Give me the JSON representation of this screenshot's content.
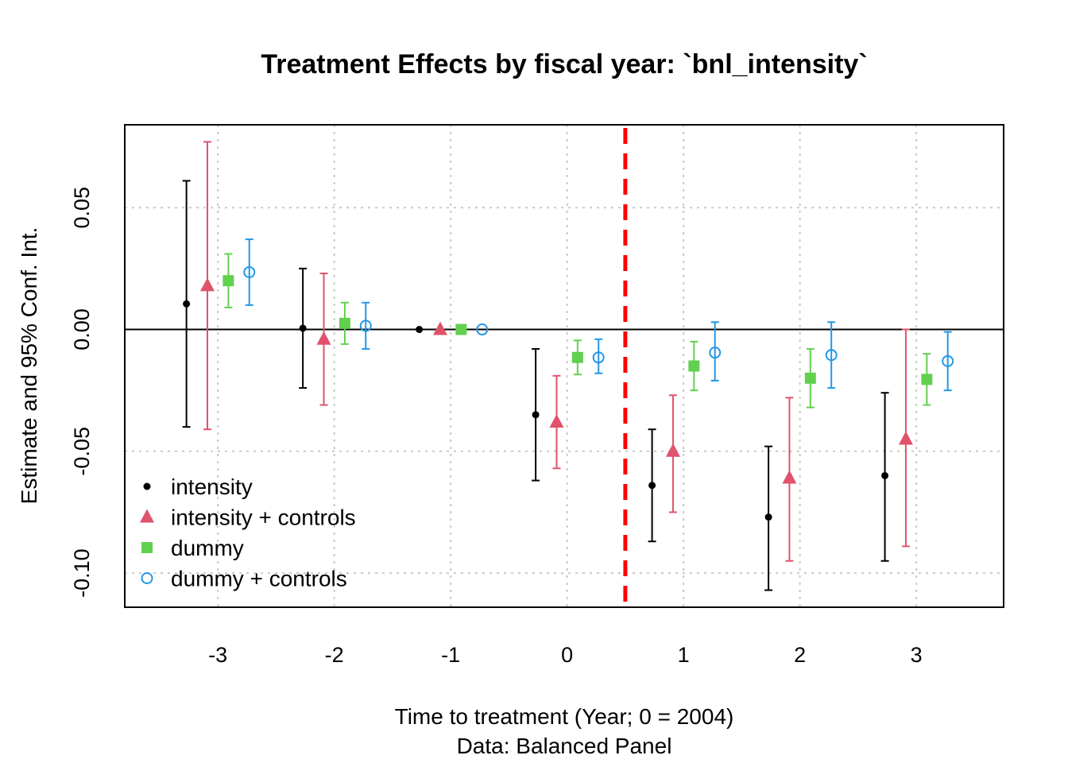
{
  "chart_data": {
    "type": "scatter",
    "title": "Treatment Effects by fiscal year: `bnl_intensity`",
    "xlabel": "Time to treatment (Year; 0 = 2004)",
    "xlabel2": "Data: Balanced Panel",
    "ylabel": "Estimate and 95% Conf. Int.",
    "xlim": [
      -3.8,
      3.75
    ],
    "ylim": [
      -0.114,
      0.084
    ],
    "x_ticks": [
      -3,
      -2,
      -1,
      0,
      1,
      2,
      3
    ],
    "x_tick_labels": [
      "-3",
      "-2",
      "-1",
      "0",
      "1",
      "2",
      "3"
    ],
    "y_ticks": [
      0.05,
      0.0,
      -0.05,
      -0.1
    ],
    "y_tick_labels": [
      "0.05",
      "0.00",
      "-0.05",
      "-0.10"
    ],
    "grid": true,
    "zero_line": 0,
    "treatment_line_x": 0.5,
    "treatment_line_color": "#FF0000",
    "legend_position": "bottom-left",
    "series": [
      {
        "name": "intensity",
        "color": "#000000",
        "marker": "dot",
        "x": [
          -3.27,
          -2.27,
          -1.27,
          -0.27,
          0.73,
          1.73,
          2.73
        ],
        "y": [
          0.0105,
          0.0005,
          0.0,
          -0.035,
          -0.064,
          -0.077,
          -0.06
        ],
        "ci_low": [
          -0.04,
          -0.024,
          0.0,
          -0.062,
          -0.087,
          -0.107,
          -0.095
        ],
        "ci_high": [
          0.061,
          0.025,
          0.0,
          -0.008,
          -0.041,
          -0.048,
          -0.026
        ]
      },
      {
        "name": "intensity + controls",
        "color": "#DF536B",
        "marker": "triangle",
        "x": [
          -3.09,
          -2.09,
          -1.09,
          -0.09,
          0.91,
          1.91,
          2.91
        ],
        "y": [
          0.018,
          -0.004,
          0.0,
          -0.038,
          -0.05,
          -0.061,
          -0.045
        ],
        "ci_low": [
          -0.041,
          -0.031,
          0.0,
          -0.057,
          -0.075,
          -0.095,
          -0.089
        ],
        "ci_high": [
          0.077,
          0.023,
          0.0,
          -0.019,
          -0.027,
          -0.028,
          0.0
        ]
      },
      {
        "name": "dummy",
        "color": "#61D04F",
        "marker": "square",
        "x": [
          -2.91,
          -1.91,
          -0.91,
          0.09,
          1.09,
          2.09,
          3.09
        ],
        "y": [
          0.02,
          0.0025,
          0.0,
          -0.0115,
          -0.015,
          -0.02,
          -0.0205
        ],
        "ci_low": [
          0.009,
          -0.006,
          0.0,
          -0.0185,
          -0.025,
          -0.032,
          -0.031
        ],
        "ci_high": [
          0.031,
          0.011,
          0.0,
          -0.0045,
          -0.005,
          -0.008,
          -0.01
        ]
      },
      {
        "name": "dummy + controls",
        "color": "#2297E6",
        "marker": "circle",
        "x": [
          -2.73,
          -1.73,
          -0.73,
          0.27,
          1.27,
          2.27,
          3.27
        ],
        "y": [
          0.0235,
          0.0015,
          0.0,
          -0.0115,
          -0.0095,
          -0.0105,
          -0.013
        ],
        "ci_low": [
          0.01,
          -0.008,
          0.0,
          -0.018,
          -0.021,
          -0.024,
          -0.025
        ],
        "ci_high": [
          0.037,
          0.011,
          0.0,
          -0.004,
          0.003,
          0.003,
          -0.001
        ]
      }
    ]
  }
}
